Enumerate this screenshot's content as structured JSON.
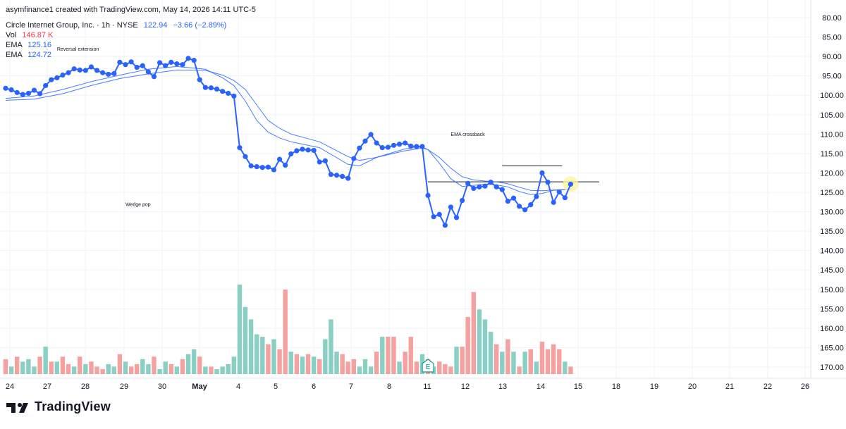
{
  "created_by": "asymfinance1 created with TradingView.com, May 14, 2026 14:11 UTC-5",
  "legend": {
    "symbol_line": "Circle Internet Group, Inc. · 1h · NYSE",
    "last_price": "122.94",
    "change": "−3.66 (−2.89%)",
    "vol_label": "Vol",
    "vol_value": "146.87 K",
    "ema1_label": "EMA",
    "ema1_value": "125.16",
    "ema2_label": "EMA",
    "ema2_value": "124.72"
  },
  "watermark": "TradingView",
  "colors": {
    "price_line": "#2962ff",
    "ema": "#2962ff",
    "vol_up": "#89cfc4",
    "vol_down": "#f4a1a0",
    "grid": "#f0f3fa",
    "text": "#131722",
    "change_text": "#2962ff",
    "vol_value_text": "#f23645",
    "highlight": "#fff59d"
  },
  "chart_data": {
    "type": "line",
    "y_axis_inverted": true,
    "ylim": [
      80,
      172
    ],
    "y_ticks": [
      "80.00",
      "85.00",
      "90.00",
      "95.00",
      "100.00",
      "105.00",
      "110.00",
      "115.00",
      "120.00",
      "125.00",
      "130.00",
      "135.00",
      "140.00",
      "145.00",
      "150.00",
      "155.00",
      "160.00",
      "165.00",
      "170.00"
    ],
    "x_ticks": [
      "24",
      "27",
      "28",
      "29",
      "30",
      "May",
      "4",
      "5",
      "6",
      "7",
      "8",
      "11",
      "12",
      "13",
      "14",
      "15",
      "18",
      "19",
      "20",
      "21",
      "22",
      "26"
    ],
    "xlim": [
      0,
      105
    ],
    "series": [
      {
        "style": "line-markers",
        "x": [
          0,
          1,
          2,
          3,
          4,
          5,
          6,
          7,
          8,
          9,
          10,
          11,
          12,
          13,
          14,
          15,
          16,
          17,
          18,
          19,
          20,
          21,
          22,
          23,
          24,
          25,
          26,
          27,
          28,
          29,
          30,
          31,
          32,
          33,
          34,
          35,
          36,
          37,
          38,
          39,
          40,
          41,
          42,
          43,
          44,
          45,
          46,
          47,
          48,
          49,
          50,
          51,
          52,
          53,
          54,
          55,
          56,
          57,
          58,
          59,
          60,
          61,
          62,
          63,
          64,
          65,
          66,
          67,
          68,
          69,
          70,
          71,
          72,
          73,
          74,
          75,
          76,
          77,
          78,
          79,
          80,
          81,
          82,
          83,
          84,
          85,
          86,
          87,
          88,
          89,
          90,
          91,
          92,
          93,
          94,
          95,
          96,
          97,
          98,
          99
        ],
        "y": [
          98.2,
          98.6,
          99.3,
          99.8,
          99.5,
          98.7,
          99.6,
          97.5,
          96,
          95.5,
          94.8,
          94.2,
          93.2,
          93.5,
          93.6,
          92.7,
          93.6,
          94.2,
          94.6,
          94.4,
          91.5,
          92.1,
          91.4,
          92.8,
          92.4,
          94,
          95.2,
          91.6,
          92.4,
          91.5,
          91.9,
          92.1,
          90.5,
          91,
          96,
          98,
          98.1,
          98.4,
          99,
          99.5,
          100.2,
          113.5,
          115.8,
          118.2,
          118.4,
          118.6,
          118.5,
          119.2,
          116.5,
          118,
          115.1,
          114.3,
          113.9,
          114.1,
          114.2,
          117.2,
          116.9,
          120.4,
          120.6,
          120.9,
          121.4,
          116.3,
          113.6,
          111.8,
          110.1,
          112.3,
          113.5,
          113.4,
          112.9,
          112.6,
          112.3,
          113.1,
          113.2,
          113.2,
          125.8,
          131.3,
          130.7,
          133.5,
          128.8,
          131.5,
          127.1,
          122.7,
          124,
          123.6,
          123.4,
          122.4,
          123.6,
          124.3,
          127.3,
          126.5,
          128.6,
          129.5,
          128.2,
          126.1,
          120,
          122.4,
          127.6,
          124.9,
          126.4,
          122.9
        ]
      },
      {
        "style": "line",
        "x": [
          0,
          5,
          10,
          15,
          20,
          25,
          30,
          35,
          38,
          40,
          42,
          44,
          46,
          48,
          50,
          55,
          60,
          62,
          65,
          70,
          73,
          74,
          76,
          78,
          80,
          82,
          84,
          86,
          88,
          90,
          92,
          94,
          96,
          98,
          99
        ],
        "y": [
          100.8,
          100.2,
          98.5,
          96.5,
          94.8,
          93.3,
          92.6,
          93.3,
          95.5,
          97.5,
          101.5,
          106.5,
          109.5,
          111,
          112,
          113.5,
          117.8,
          118.2,
          116,
          113.8,
          113.3,
          114,
          117.5,
          121.5,
          123.5,
          123.2,
          122.9,
          123.1,
          123.6,
          124.8,
          125.6,
          125.3,
          124.5,
          124.3,
          124.2
        ]
      },
      {
        "style": "line",
        "x": [
          0,
          5,
          10,
          15,
          20,
          25,
          30,
          35,
          38,
          40,
          42,
          44,
          46,
          48,
          50,
          55,
          60,
          62,
          65,
          70,
          73,
          74,
          76,
          78,
          80,
          82,
          84,
          86,
          88,
          90,
          92,
          94,
          96,
          98,
          99
        ],
        "y": [
          101.3,
          101,
          99.6,
          97.5,
          95.7,
          94.5,
          93.5,
          93.6,
          94.8,
          96.2,
          98.5,
          102.5,
          106.5,
          108.5,
          110,
          112,
          115.8,
          116.8,
          116,
          114.3,
          113.6,
          114,
          116,
          118.8,
          121,
          121.8,
          122.1,
          122.3,
          122.8,
          123.7,
          124.5,
          124.6,
          124.4,
          124.3,
          124.3
        ]
      }
    ],
    "volume": {
      "values": [
        6,
        3,
        7,
        5,
        6,
        3,
        7,
        11,
        5,
        5,
        7,
        4,
        3,
        7,
        4,
        5,
        3,
        2,
        4,
        3,
        8,
        5,
        3,
        4,
        6,
        4,
        7,
        2,
        5,
        4,
        3,
        6,
        8,
        10,
        7,
        3,
        3,
        2,
        3,
        4,
        7,
        36,
        27,
        22,
        16,
        15,
        12,
        14,
        10,
        34,
        9,
        8,
        7,
        8,
        7,
        6,
        14,
        22,
        9,
        8,
        5,
        6,
        3,
        6,
        3,
        9,
        15,
        15,
        15,
        5,
        9,
        15,
        5,
        8,
        6,
        3,
        5,
        4,
        3,
        11,
        11,
        23,
        33,
        26,
        22,
        17,
        12,
        9,
        14,
        9,
        3,
        9,
        10,
        5,
        13,
        10,
        12,
        10,
        5,
        3
      ],
      "colors": [
        "d",
        "u",
        "d",
        "u",
        "u",
        "u",
        "d",
        "u",
        "d",
        "u",
        "d",
        "d",
        "u",
        "d",
        "u",
        "d",
        "d",
        "d",
        "u",
        "u",
        "d",
        "u",
        "d",
        "d",
        "u",
        "u",
        "d",
        "u",
        "u",
        "d",
        "u",
        "d",
        "u",
        "u",
        "d",
        "u",
        "d",
        "u",
        "u",
        "u",
        "u",
        "u",
        "u",
        "u",
        "u",
        "u",
        "d",
        "u",
        "d",
        "d",
        "u",
        "d",
        "u",
        "d",
        "u",
        "d",
        "u",
        "u",
        "u",
        "d",
        "d",
        "d",
        "u",
        "u",
        "u",
        "d",
        "u",
        "d",
        "d",
        "u",
        "d",
        "d",
        "d",
        "u",
        "d",
        "u",
        "d",
        "d",
        "d",
        "u",
        "d",
        "d",
        "d",
        "u",
        "u",
        "u",
        "d",
        "u",
        "d",
        "u",
        "d",
        "u",
        "d",
        "u",
        "d",
        "d",
        "d",
        "d",
        "u",
        "d"
      ],
      "earnings_marker_index": 74,
      "earnings_label": "E"
    },
    "annotations": [
      {
        "text": "Reversal extension",
        "x": 9,
        "y": 88.5
      },
      {
        "text": "EMA crossback",
        "x": 78,
        "y": 110.5
      },
      {
        "text": "Wedge pop",
        "x": 21,
        "y": 128.5
      }
    ],
    "horizontal_lines": [
      {
        "x0": 74,
        "x1": 104,
        "y": 122.3
      },
      {
        "x0": 87,
        "x1": 97.5,
        "y": 118.2
      }
    ],
    "highlight_point": {
      "x": 99,
      "y": 122.9
    }
  }
}
